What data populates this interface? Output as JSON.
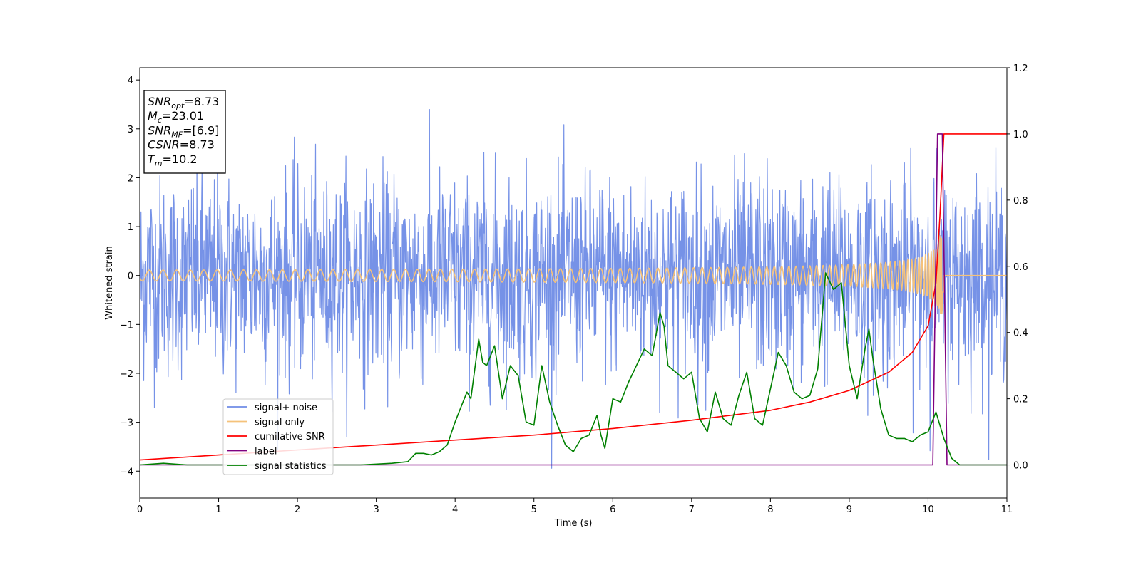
{
  "chart_data": {
    "type": "line",
    "xlabel": "Time (s)",
    "ylabel": "Whitened strain",
    "xlim": [
      0,
      11
    ],
    "ylim": [
      -4.55,
      4.25
    ],
    "y2lim": [
      -0.1,
      1.2
    ],
    "xticks": [
      0,
      1,
      2,
      3,
      4,
      5,
      6,
      7,
      8,
      9,
      10,
      11
    ],
    "yticks": [
      -4,
      -3,
      -2,
      -1,
      0,
      1,
      2,
      3,
      4
    ],
    "y2ticks": [
      "0.0",
      "0.2",
      "0.4",
      "0.6",
      "0.8",
      "1.0",
      "1.2"
    ],
    "legend": {
      "placement": "lower-left"
    },
    "annotation": {
      "lines": [
        {
          "base": "SNR",
          "sub": "opt",
          "value": "=8.73"
        },
        {
          "base": "M",
          "sub": "c",
          "value": "=23.01"
        },
        {
          "base": "SNR",
          "sub": "MF",
          "value": "=[6.9]"
        },
        {
          "base": "CSNR",
          "sub": "",
          "value": "=8.73"
        },
        {
          "base": "T",
          "sub": "m",
          "value": "=10.2"
        }
      ]
    },
    "series": [
      {
        "name": "signal+ noise",
        "axis": "left",
        "color": "#6f8ce6",
        "kind": "noise",
        "noise_std": 1.0,
        "duration": 11,
        "samples": 2200
      },
      {
        "name": "signal only",
        "axis": "left",
        "color": "#f5c27a",
        "kind": "chirp",
        "merger_time": 10.2,
        "final_amplitude": 1.3
      },
      {
        "name": "cumilative SNR",
        "axis": "right",
        "color": "#ff0000",
        "x": [
          0,
          1,
          2,
          3,
          4,
          5,
          6,
          7,
          8,
          8.5,
          9,
          9.5,
          9.8,
          10.0,
          10.1,
          10.15,
          10.2,
          10.25,
          11
        ],
        "y": [
          0.015,
          0.03,
          0.045,
          0.06,
          0.075,
          0.09,
          0.11,
          0.135,
          0.165,
          0.19,
          0.225,
          0.28,
          0.34,
          0.42,
          0.55,
          0.75,
          1.0,
          1.0,
          1.0
        ]
      },
      {
        "name": "label",
        "axis": "right",
        "color": "#800080",
        "x": [
          0,
          10.06,
          10.12,
          10.18,
          10.24,
          11
        ],
        "y": [
          0,
          0,
          1,
          1,
          0,
          0
        ]
      },
      {
        "name": "signal statistics",
        "axis": "right",
        "color": "#008000",
        "x": [
          0,
          0.3,
          0.6,
          1,
          2,
          2.8,
          3.2,
          3.4,
          3.5,
          3.6,
          3.7,
          3.8,
          3.9,
          4.0,
          4.1,
          4.15,
          4.2,
          4.3,
          4.35,
          4.4,
          4.5,
          4.6,
          4.7,
          4.8,
          4.9,
          5.0,
          5.1,
          5.2,
          5.3,
          5.4,
          5.5,
          5.6,
          5.7,
          5.8,
          5.85,
          5.9,
          6.0,
          6.1,
          6.2,
          6.3,
          6.4,
          6.5,
          6.6,
          6.65,
          6.7,
          6.8,
          6.9,
          7.0,
          7.1,
          7.2,
          7.3,
          7.4,
          7.5,
          7.6,
          7.7,
          7.8,
          7.9,
          8.0,
          8.1,
          8.2,
          8.3,
          8.4,
          8.5,
          8.6,
          8.7,
          8.8,
          8.9,
          9.0,
          9.1,
          9.2,
          9.25,
          9.3,
          9.4,
          9.5,
          9.6,
          9.7,
          9.8,
          9.9,
          10.0,
          10.1,
          10.2,
          10.3,
          10.4,
          10.5,
          11
        ],
        "y": [
          0.0,
          0.005,
          0.0,
          0.0,
          0.0,
          0.0,
          0.005,
          0.01,
          0.035,
          0.035,
          0.03,
          0.04,
          0.06,
          0.13,
          0.19,
          0.22,
          0.2,
          0.38,
          0.31,
          0.3,
          0.36,
          0.2,
          0.3,
          0.27,
          0.13,
          0.12,
          0.3,
          0.19,
          0.12,
          0.06,
          0.04,
          0.08,
          0.09,
          0.15,
          0.09,
          0.05,
          0.2,
          0.19,
          0.25,
          0.3,
          0.35,
          0.33,
          0.46,
          0.42,
          0.3,
          0.28,
          0.26,
          0.28,
          0.14,
          0.1,
          0.22,
          0.14,
          0.12,
          0.21,
          0.28,
          0.14,
          0.12,
          0.23,
          0.34,
          0.3,
          0.22,
          0.2,
          0.21,
          0.29,
          0.58,
          0.53,
          0.55,
          0.3,
          0.2,
          0.35,
          0.41,
          0.32,
          0.17,
          0.09,
          0.08,
          0.08,
          0.07,
          0.09,
          0.1,
          0.16,
          0.08,
          0.02,
          0.0,
          0.0,
          0.0
        ]
      }
    ]
  }
}
